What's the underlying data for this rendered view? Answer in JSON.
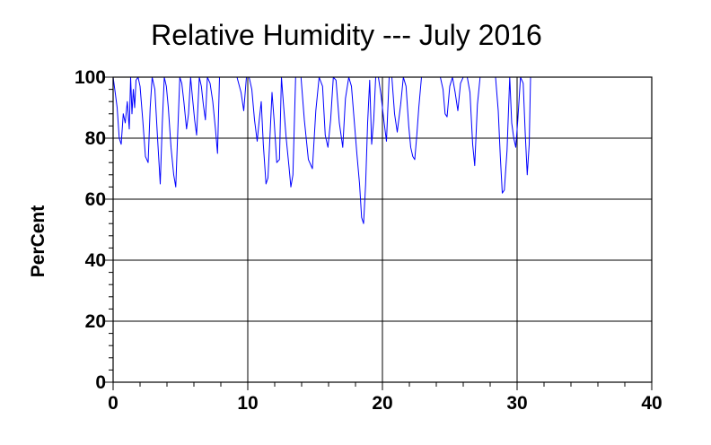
{
  "chart_data": {
    "type": "line",
    "title": "Relative Humidity --- July 2016",
    "xlabel": "",
    "ylabel": "PerCent",
    "xlim": [
      0,
      40
    ],
    "ylim": [
      0,
      100
    ],
    "x_ticks": [
      "0",
      "10",
      "20",
      "30",
      "40"
    ],
    "y_ticks": [
      "0",
      "20",
      "40",
      "60",
      "80",
      "100"
    ],
    "grid": true,
    "line_color": "#0000ff",
    "series": [
      {
        "x": [
          0.0,
          0.15,
          0.3,
          0.45,
          0.6,
          0.75,
          0.9,
          1.05,
          1.2,
          1.3,
          1.4,
          1.5,
          1.6,
          1.7,
          1.85,
          2.0,
          2.2,
          2.4,
          2.6,
          2.75,
          2.9,
          3.1,
          3.3,
          3.5,
          3.65,
          3.8,
          3.95,
          4.1,
          4.3,
          4.5,
          4.65,
          4.8,
          4.95,
          5.1,
          5.25,
          5.45,
          5.6,
          5.75,
          5.9,
          6.05,
          6.2,
          6.4,
          6.55,
          6.7,
          6.85,
          7.0,
          7.2,
          7.4,
          7.6,
          7.75,
          7.9,
          8.1,
          8.4,
          8.8,
          9.2,
          9.5,
          9.7,
          9.9,
          10.1,
          10.3,
          10.5,
          10.7,
          10.85,
          11.0,
          11.15,
          11.35,
          11.5,
          11.65,
          11.8,
          11.95,
          12.15,
          12.35,
          12.5,
          12.65,
          12.85,
          13.05,
          13.2,
          13.35,
          13.55,
          13.75,
          13.95,
          14.2,
          14.5,
          14.8,
          15.05,
          15.3,
          15.55,
          15.75,
          15.95,
          16.15,
          16.35,
          16.55,
          16.8,
          17.05,
          17.25,
          17.5,
          17.7,
          17.9,
          18.1,
          18.3,
          18.45,
          18.6,
          18.75,
          18.9,
          19.05,
          19.2,
          19.35,
          19.5,
          19.7,
          19.9,
          20.1,
          20.3,
          20.5,
          20.7,
          20.9,
          21.1,
          21.35,
          21.55,
          21.75,
          21.95,
          22.1,
          22.25,
          22.4,
          22.55,
          22.7,
          22.9,
          23.1,
          23.4,
          23.7,
          24.0,
          24.3,
          24.5,
          24.65,
          24.8,
          25.0,
          25.2,
          25.4,
          25.6,
          25.8,
          26.0,
          26.3,
          26.5,
          26.7,
          26.85,
          27.05,
          27.25,
          27.5,
          27.8,
          28.1,
          28.4,
          28.6,
          28.75,
          28.9,
          29.05,
          29.25,
          29.45,
          29.6,
          29.75,
          29.9,
          30.05,
          30.25,
          30.45,
          30.6,
          30.75,
          30.9,
          31.0
        ],
        "y": [
          100,
          95,
          90,
          80,
          78,
          88,
          85,
          92,
          83,
          100,
          88,
          96,
          90,
          99,
          100,
          97,
          86,
          74,
          72,
          90,
          100,
          96,
          80,
          65,
          85,
          100,
          97,
          90,
          77,
          68,
          64,
          82,
          100,
          98,
          92,
          83,
          88,
          100,
          93,
          86,
          81,
          100,
          97,
          91,
          86,
          100,
          98,
          92,
          83,
          75,
          100,
          100,
          100,
          100,
          100,
          95,
          89,
          100,
          100,
          96,
          86,
          79,
          86,
          92,
          78,
          65,
          67,
          81,
          95,
          86,
          72,
          73,
          100,
          91,
          80,
          71,
          64,
          68,
          100,
          100,
          100,
          86,
          73,
          70,
          89,
          100,
          97,
          81,
          77,
          86,
          100,
          99,
          85,
          77,
          93,
          100,
          97,
          86,
          75,
          65,
          54,
          52,
          65,
          85,
          99,
          78,
          86,
          100,
          100,
          94,
          86,
          79,
          100,
          100,
          88,
          82,
          91,
          100,
          97,
          84,
          77,
          74,
          73,
          81,
          90,
          100,
          100,
          100,
          100,
          100,
          100,
          96,
          88,
          87,
          97,
          100,
          95,
          89,
          98,
          100,
          100,
          95,
          78,
          71,
          91,
          100,
          100,
          100,
          100,
          100,
          89,
          74,
          62,
          63,
          76,
          100,
          85,
          80,
          77,
          86,
          100,
          98,
          82,
          68,
          78,
          100
        ]
      }
    ]
  }
}
